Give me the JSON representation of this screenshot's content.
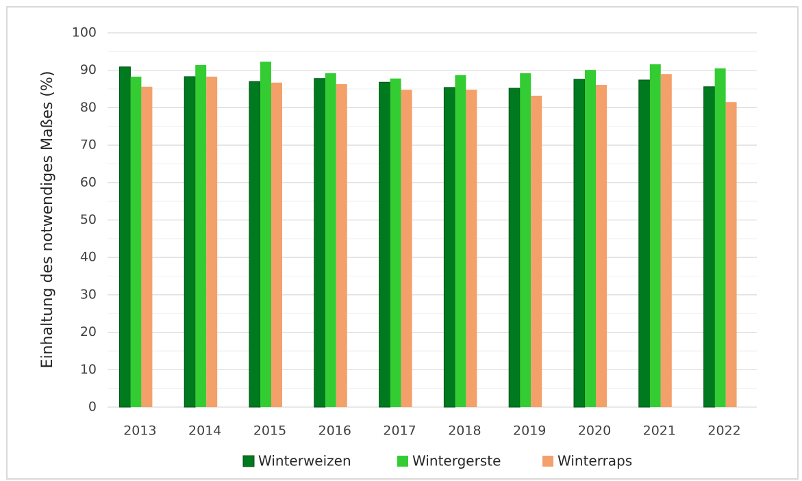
{
  "chart_data": {
    "type": "bar",
    "ylabel": "Einhaltung des notwendiges Maßes  (%)",
    "categories": [
      "2013",
      "2014",
      "2015",
      "2016",
      "2017",
      "2018",
      "2019",
      "2020",
      "2021",
      "2022"
    ],
    "series": [
      {
        "name": "Winterweizen",
        "color": "#007a1e",
        "values": [
          90.9,
          88.3,
          87.0,
          87.8,
          86.8,
          85.4,
          85.2,
          87.6,
          87.4,
          85.6
        ]
      },
      {
        "name": "Wintergerste",
        "color": "#33cc33",
        "values": [
          88.3,
          91.4,
          92.3,
          89.2,
          87.8,
          88.7,
          89.2,
          90.1,
          91.6,
          90.5
        ]
      },
      {
        "name": "Winterraps",
        "color": "#f4a06a",
        "values": [
          85.6,
          88.3,
          86.7,
          86.3,
          84.8,
          84.8,
          83.2,
          86.1,
          89.0,
          81.5
        ]
      }
    ],
    "ylim": [
      0,
      100
    ],
    "yticks": [
      0,
      10,
      20,
      30,
      40,
      50,
      60,
      70,
      80,
      90,
      100
    ],
    "minor_yticks": [
      5,
      15,
      25,
      35,
      45,
      55,
      65,
      75,
      85,
      95
    ],
    "grid": true,
    "legend": "bottom"
  }
}
